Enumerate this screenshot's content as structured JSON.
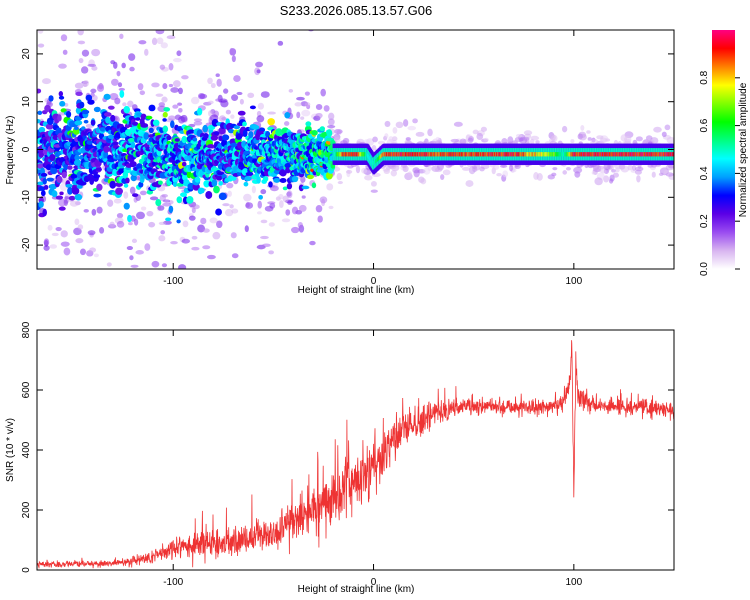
{
  "title": "S233.2026.085.13.57.G06",
  "chart_data": [
    {
      "type": "heatmap",
      "title": "S233.2026.085.13.57.G06",
      "xlabel": "Height of straight line (km)",
      "ylabel": "Frequency (Hz)",
      "xlim": [
        -168,
        150
      ],
      "ylim": [
        -25,
        25
      ],
      "xticks": [
        -100,
        0,
        100
      ],
      "yticks": [
        -20,
        -10,
        0,
        10,
        20
      ],
      "colorbar": {
        "label": "Normalized spectral amplitude",
        "range": [
          0,
          1
        ],
        "ticks": [
          0.0,
          0.2,
          0.4,
          0.6,
          0.8
        ],
        "colors": [
          "#ffffff",
          "#d8b4f0",
          "#9a4cf0",
          "#5b00e6",
          "#0000ff",
          "#00a0ff",
          "#00ffff",
          "#00ff80",
          "#00ff00",
          "#80ff00",
          "#ffff00",
          "#ff8000",
          "#ff0000",
          "#ff0080"
        ]
      },
      "ridge": {
        "description": "main spectral band near 0 Hz",
        "x": [
          -160,
          -140,
          -120,
          -100,
          -80,
          -60,
          -40,
          -20,
          -15,
          -8,
          -3,
          0,
          5,
          12,
          40,
          70,
          90,
          95,
          100,
          120,
          150
        ],
        "frequency": [
          0,
          0.5,
          0,
          -2,
          -1,
          -1,
          -1,
          -1,
          -1,
          -1,
          -1,
          -3,
          -1,
          -1,
          -1,
          -1,
          -1,
          -1,
          -1,
          -1,
          -1
        ],
        "amplitude": [
          0.3,
          0.3,
          0.35,
          0.4,
          0.35,
          0.35,
          0.4,
          0.45,
          0.9,
          0.95,
          0.5,
          0.4,
          0.9,
          0.95,
          0.9,
          0.95,
          0.7,
          0.5,
          0.95,
          0.95,
          0.95
        ]
      }
    },
    {
      "type": "line",
      "xlabel": "Height of straight line (km)",
      "ylabel": "SNR (10 * v/v)",
      "xlim": [
        -168,
        150
      ],
      "ylim": [
        0,
        800
      ],
      "xticks": [
        -100,
        0,
        100
      ],
      "yticks": [
        0,
        200,
        400,
        600,
        800
      ],
      "series": [
        {
          "name": "SNR",
          "color": "#ee3333",
          "x": [
            -168,
            -150,
            -130,
            -120,
            -110,
            -100,
            -90,
            -80,
            -70,
            -60,
            -50,
            -40,
            -30,
            -20,
            -15,
            -10,
            -5,
            0,
            5,
            10,
            20,
            30,
            40,
            50,
            60,
            70,
            80,
            90,
            95,
            98,
            99,
            100,
            101,
            102,
            110,
            120,
            130,
            140,
            150
          ],
          "y": [
            20,
            20,
            22,
            30,
            45,
            70,
            80,
            85,
            95,
            105,
            120,
            160,
            200,
            230,
            270,
            300,
            330,
            350,
            380,
            430,
            480,
            520,
            540,
            550,
            545,
            545,
            540,
            545,
            560,
            620,
            760,
            240,
            700,
            580,
            550,
            545,
            545,
            540,
            530
          ],
          "noise": [
            10,
            10,
            12,
            15,
            25,
            35,
            40,
            45,
            45,
            50,
            55,
            65,
            75,
            85,
            95,
            100,
            100,
            95,
            90,
            80,
            60,
            45,
            35,
            30,
            28,
            28,
            28,
            28,
            30,
            40,
            40,
            30,
            40,
            35,
            28,
            28,
            28,
            28,
            28
          ],
          "samples_per_km": 7
        }
      ]
    }
  ]
}
